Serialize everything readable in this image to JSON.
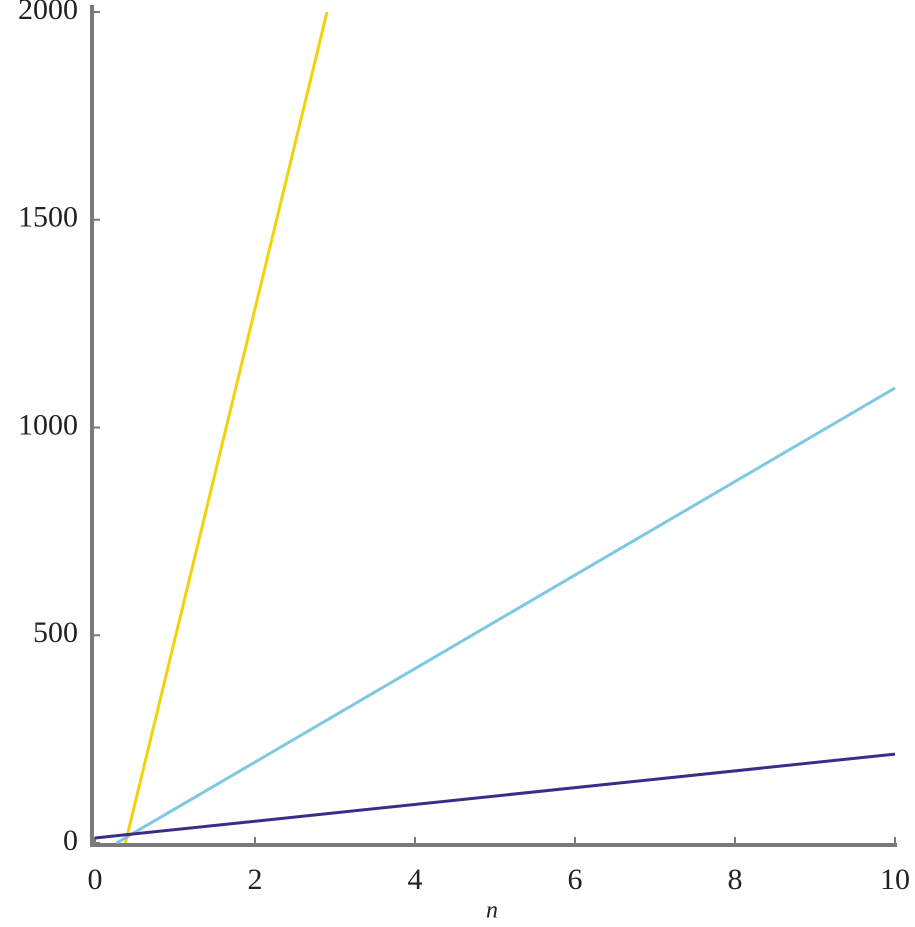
{
  "chart_data": {
    "type": "line",
    "x_label": "n",
    "xlim": [
      0,
      10
    ],
    "ylim": [
      0,
      2000
    ],
    "xticks": [
      0,
      2,
      4,
      6,
      8,
      10
    ],
    "yticks": [
      0,
      500,
      1000,
      1500,
      2000
    ],
    "grid": false,
    "series": [
      {
        "color": "#f2d20a",
        "x": [
          0.38,
          2.9
        ],
        "values": [
          0,
          2000
        ]
      },
      {
        "color": "#7ec8e3",
        "x": [
          0.27,
          10
        ],
        "values": [
          0,
          1095
        ]
      },
      {
        "color": "#3b2c8a",
        "x": [
          0,
          10
        ],
        "values": [
          12,
          214
        ]
      }
    ]
  }
}
